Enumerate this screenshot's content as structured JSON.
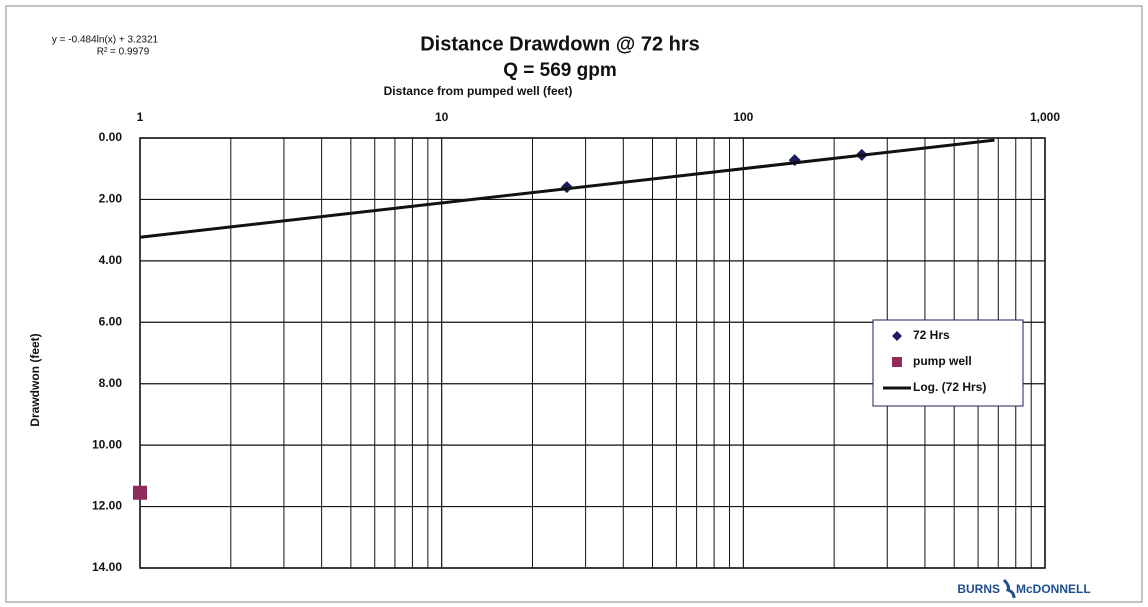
{
  "chart_data": {
    "type": "scatter",
    "title": "Distance Drawdown @ 72 hrs",
    "subtitle": "Q = 569 gpm",
    "x_label": "Distance from pumped well (feet)",
    "y_label": "Drawdwon (feet)",
    "annotations": [
      "y = -0.484ln(x) + 3.2321",
      "R² = 0.9979"
    ],
    "logo": [
      "BURNS",
      "McDONNELL"
    ],
    "x_log": true,
    "y_inverted": true,
    "grid": true,
    "x_minor_grid": true,
    "legend": "right",
    "xlim": [
      1,
      1000
    ],
    "xticks": [
      1,
      10,
      100,
      {
        "value": 1000,
        "label": "1,000"
      }
    ],
    "ylim": [
      0,
      14
    ],
    "yticks": [
      {
        "value": 0,
        "label": "0.00"
      },
      {
        "value": 2,
        "label": "2.00"
      },
      {
        "value": 4,
        "label": "4.00"
      },
      {
        "value": 6,
        "label": "6.00"
      },
      {
        "value": 8,
        "label": "8.00"
      },
      {
        "value": 10,
        "label": "10.00"
      },
      {
        "value": 12,
        "label": "12.00"
      },
      {
        "value": 14,
        "label": "14.00"
      }
    ],
    "series": [
      {
        "name": "72 Hrs",
        "color": "#1c1c5c",
        "marker": "diamond",
        "x": [
          26,
          148,
          247
        ],
        "values": [
          1.6,
          0.72,
          0.55
        ]
      },
      {
        "name": "pump well",
        "color": "#8e2a5c",
        "marker": "square",
        "x": [
          1
        ],
        "values": [
          11.55
        ]
      },
      {
        "name": "Log. (72 Hrs)",
        "color": "#111111",
        "marker": "line",
        "x": [
          1,
          680
        ],
        "values": [
          3.23,
          0.07
        ]
      }
    ]
  }
}
